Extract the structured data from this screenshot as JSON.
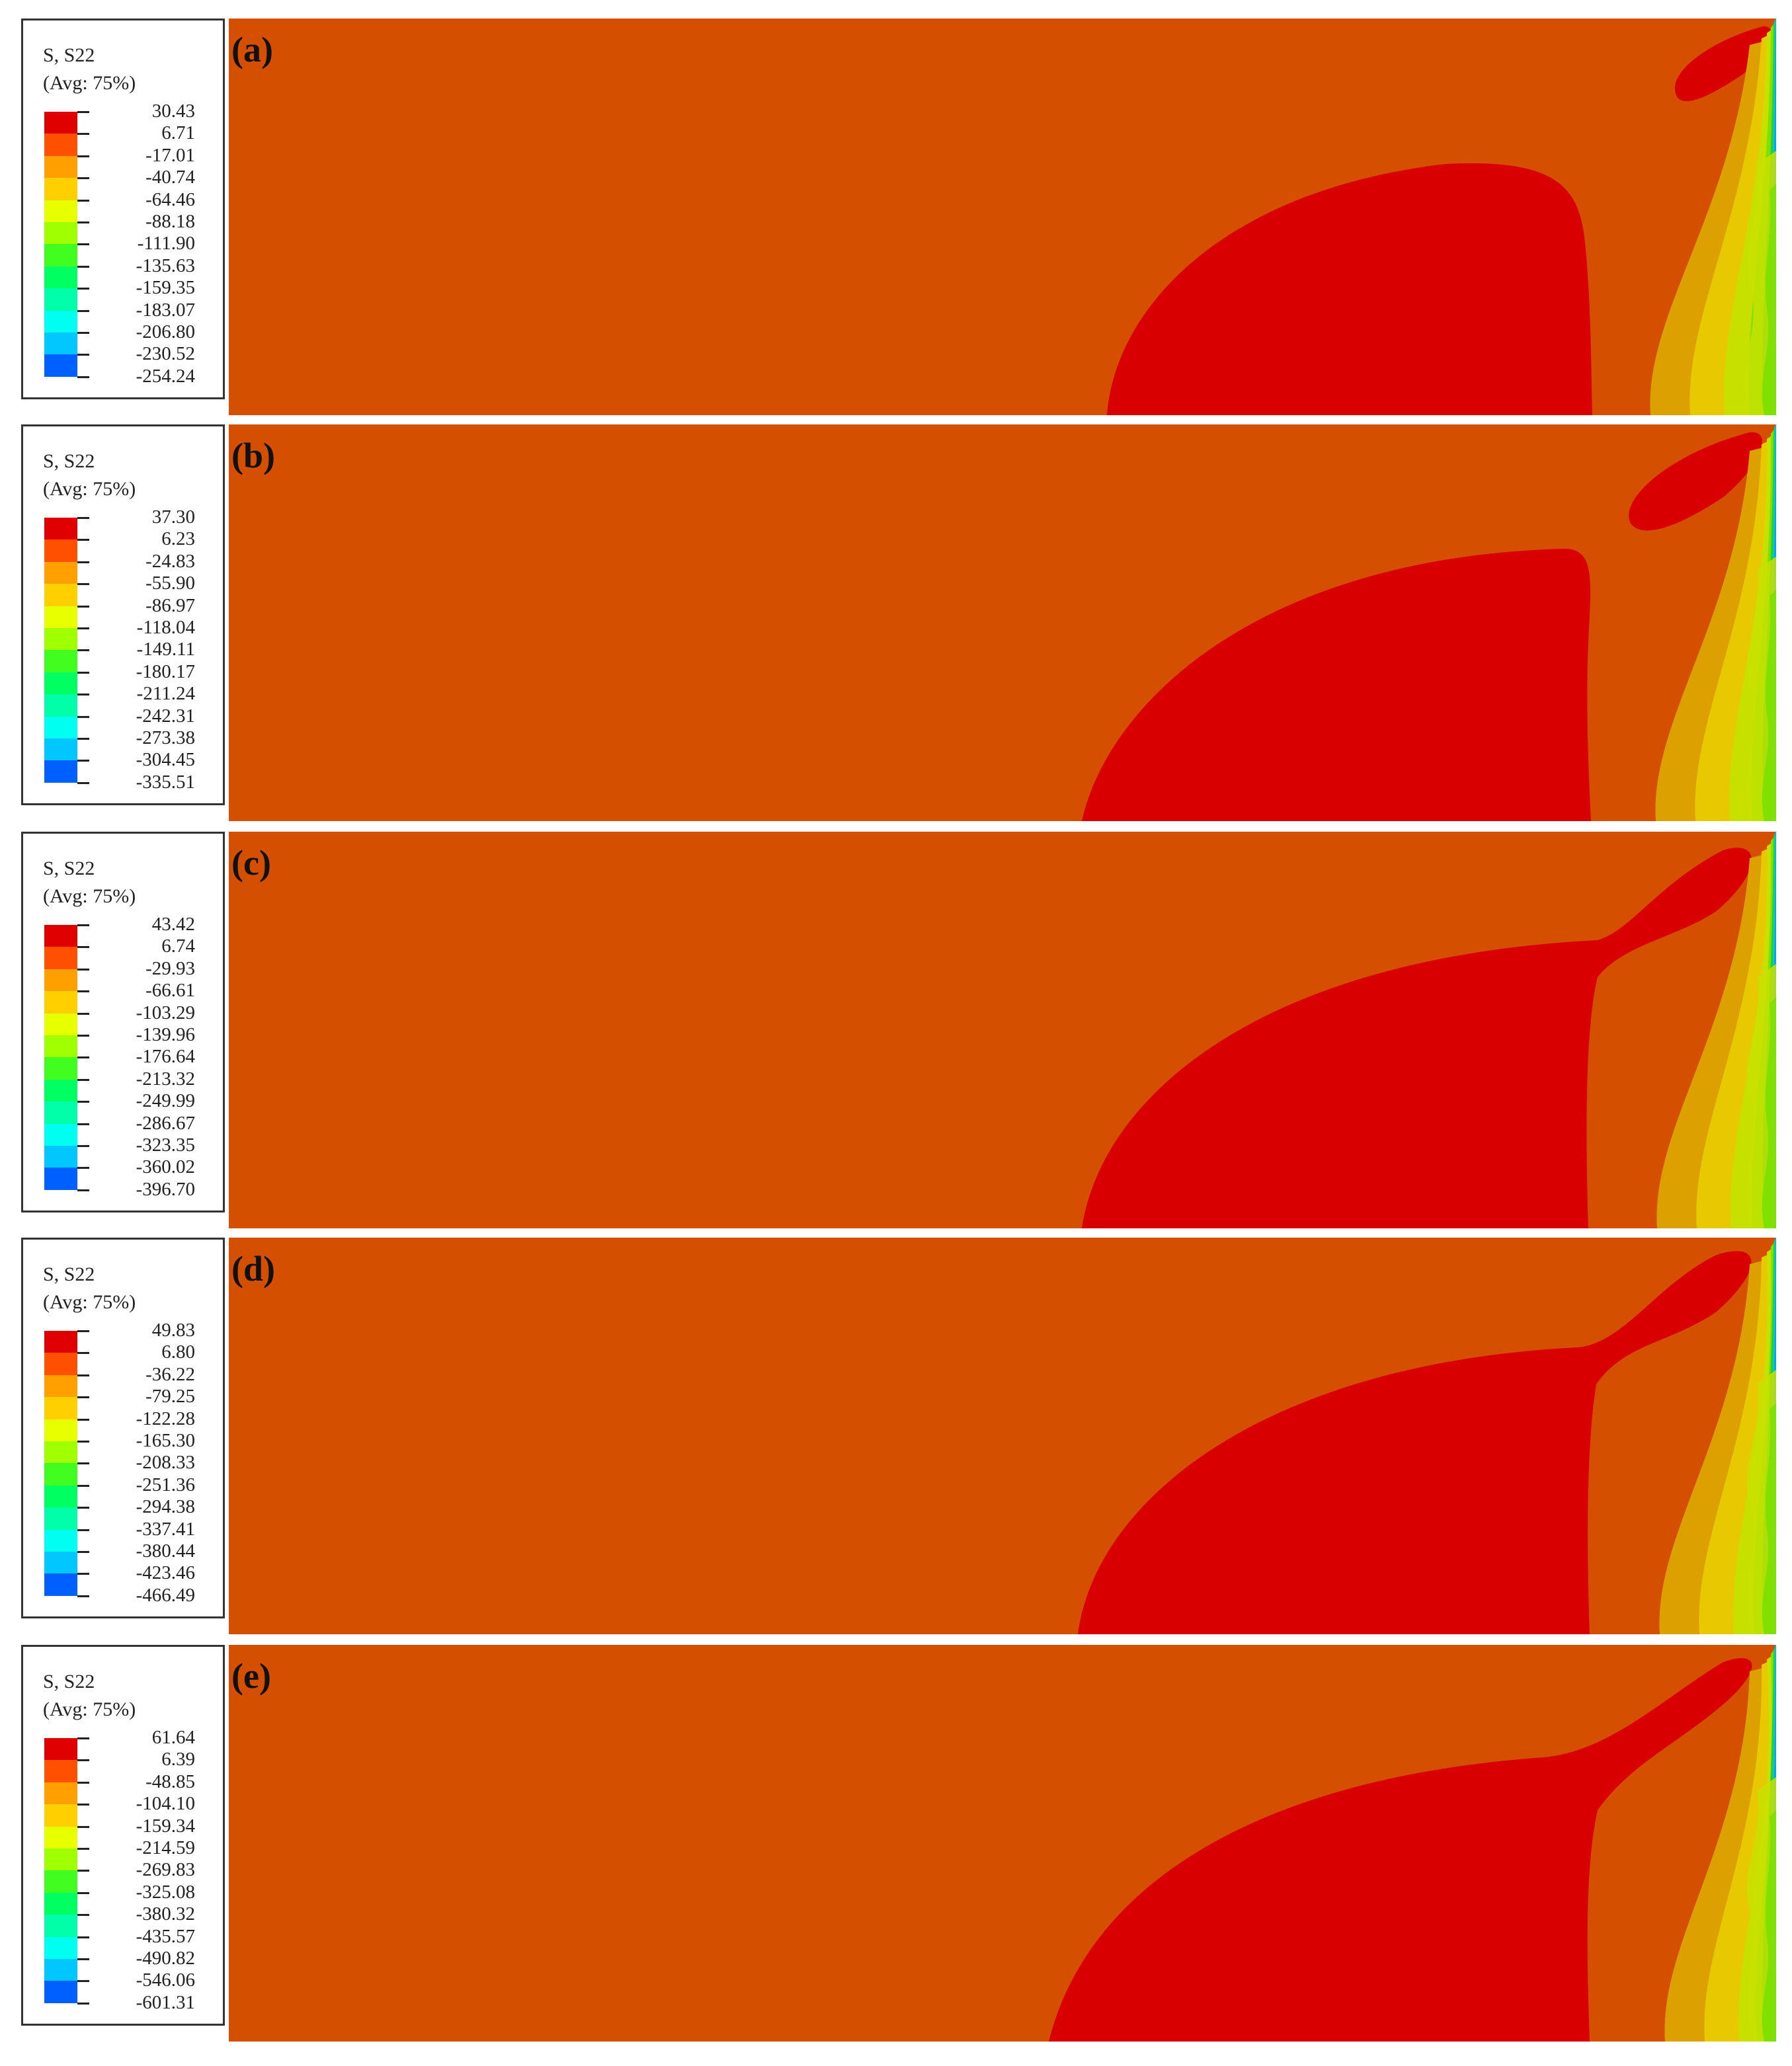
{
  "colors": {
    "background_field": "#d45000",
    "red_lobe": "#d80000",
    "contour_bands": [
      "#d45000",
      "#dca000",
      "#e8c800",
      "#c8e000",
      "#80e000",
      "#20d040",
      "#00d8b0",
      "#00a0ff"
    ],
    "legend_scale": [
      "#e00000",
      "#ff5000",
      "#ffa000",
      "#ffd000",
      "#e8ff00",
      "#a0ff00",
      "#40ff20",
      "#00ff60",
      "#00ffa8",
      "#00fff0",
      "#00c8ff",
      "#0060ff",
      "#0000ff"
    ]
  },
  "panels": [
    {
      "label": "(a)",
      "legend_title": "S, S22",
      "legend_sub": "(Avg: 75%)",
      "values": [
        "30.43",
        "6.71",
        "-17.01",
        "-40.74",
        "-64.46",
        "-88.18",
        "-111.90",
        "-135.63",
        "-159.35",
        "-183.07",
        "-206.80",
        "-230.52",
        "-254.24"
      ],
      "shape": "a"
    },
    {
      "label": "(b)",
      "legend_title": "S, S22",
      "legend_sub": "(Avg: 75%)",
      "values": [
        "37.30",
        "6.23",
        "-24.83",
        "-55.90",
        "-86.97",
        "-118.04",
        "-149.11",
        "-180.17",
        "-211.24",
        "-242.31",
        "-273.38",
        "-304.45",
        "-335.51"
      ],
      "shape": "b"
    },
    {
      "label": "(c)",
      "legend_title": "S, S22",
      "legend_sub": "(Avg: 75%)",
      "values": [
        "43.42",
        "6.74",
        "-29.93",
        "-66.61",
        "-103.29",
        "-139.96",
        "-176.64",
        "-213.32",
        "-249.99",
        "-286.67",
        "-323.35",
        "-360.02",
        "-396.70"
      ],
      "shape": "c"
    },
    {
      "label": "(d)",
      "legend_title": "S, S22",
      "legend_sub": "(Avg: 75%)",
      "values": [
        "49.83",
        "6.80",
        "-36.22",
        "-79.25",
        "-122.28",
        "-165.30",
        "-208.33",
        "-251.36",
        "-294.38",
        "-337.41",
        "-380.44",
        "-423.46",
        "-466.49"
      ],
      "shape": "d"
    },
    {
      "label": "(e)",
      "legend_title": "S, S22",
      "legend_sub": "(Avg: 75%)",
      "values": [
        "61.64",
        "6.39",
        "-48.85",
        "-104.10",
        "-159.34",
        "-214.59",
        "-269.83",
        "-325.08",
        "-380.32",
        "-435.57",
        "-490.82",
        "-546.06",
        "-601.31"
      ],
      "shape": "e"
    }
  ]
}
